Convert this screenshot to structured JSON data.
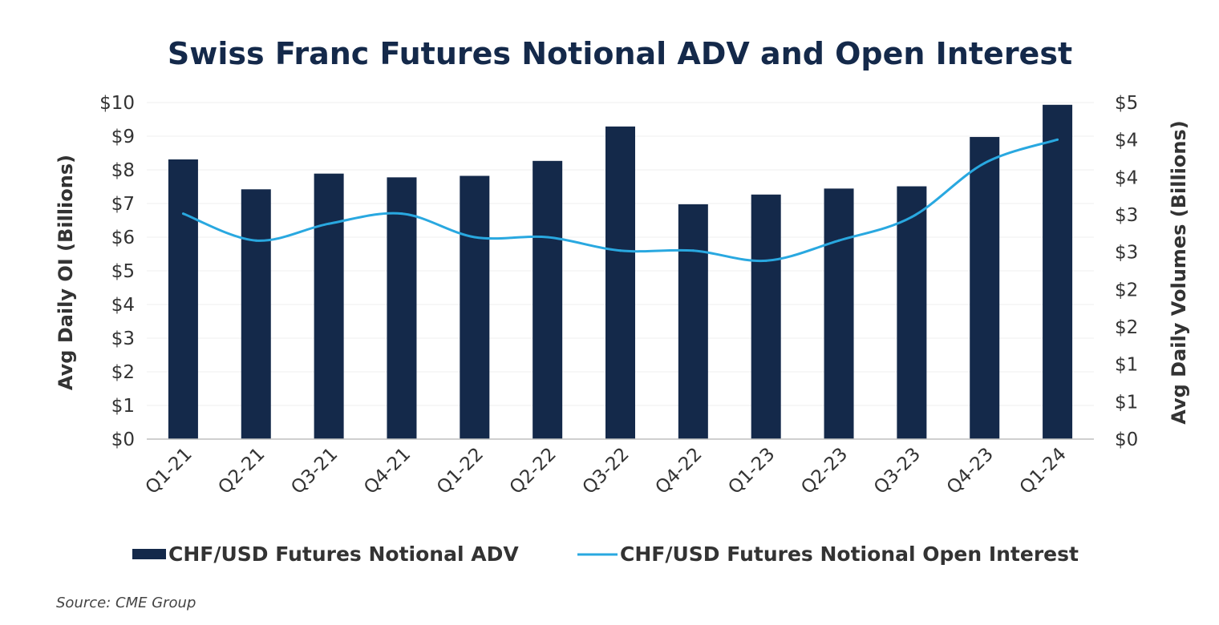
{
  "chart_data": {
    "type": "bar",
    "title": "Swiss Franc Futures Notional ADV and Open Interest",
    "categories": [
      "Q1-21",
      "Q2-21",
      "Q3-21",
      "Q4-21",
      "Q1-22",
      "Q2-22",
      "Q3-22",
      "Q4-22",
      "Q1-23",
      "Q2-23",
      "Q3-23",
      "Q4-23",
      "Q1-24"
    ],
    "series": [
      {
        "name": "CHF/USD Futures Notional ADV",
        "type": "bar",
        "axis": "right",
        "color": "#14294a",
        "values": [
          3.74,
          3.34,
          3.55,
          3.5,
          3.52,
          3.72,
          4.18,
          3.14,
          3.27,
          3.35,
          3.38,
          4.04,
          4.47
        ]
      },
      {
        "name": "CHF/USD Futures Notional Open Interest",
        "type": "line",
        "axis": "left",
        "color": "#29a8e0",
        "values": [
          6.7,
          5.9,
          6.4,
          6.7,
          6.0,
          6.0,
          5.6,
          5.6,
          5.3,
          5.9,
          6.6,
          8.2,
          8.9
        ]
      }
    ],
    "ylabel": "Avg Daily OI (Billions)",
    "y2label": "Avg Daily Volumes (Billions)",
    "ylim": [
      0,
      10
    ],
    "y2lim": [
      0,
      4.5
    ],
    "yticks": [
      "$0",
      "$1",
      "$2",
      "$3",
      "$4",
      "$5",
      "$6",
      "$7",
      "$8",
      "$9",
      "$10"
    ],
    "y2ticks": [
      "$0",
      "$1",
      "$1",
      "$2",
      "$2",
      "$3",
      "$3",
      "$4",
      "$4",
      "$5"
    ],
    "legend_position": "bottom",
    "grid": true
  },
  "source": "Source: CME Group"
}
